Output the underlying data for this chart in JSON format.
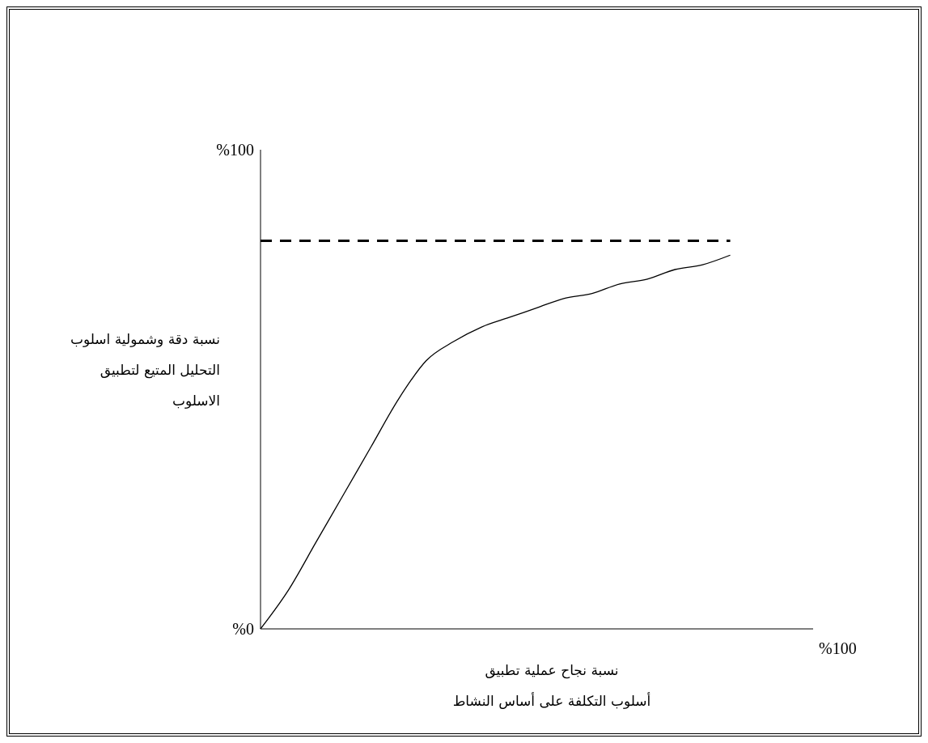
{
  "chart_data": {
    "type": "line",
    "xlabel": "نسبة نجاح عملية تطبيق\nأسلوب التكلفة على أساس النشاط",
    "ylabel": "نسبة دقة وشمولية اسلوب\nالتحليل المتيع لتطبيق\nالاسلوب",
    "categories": [
      null,
      null,
      null,
      null,
      null,
      null,
      null,
      null,
      null,
      null,
      null,
      null,
      null,
      null,
      null,
      null,
      null,
      null,
      null,
      null,
      null
    ],
    "series": [
      {
        "color": "#000000",
        "line_style": "dashed",
        "values": [
          81,
          81,
          81,
          81,
          81,
          81,
          81,
          81,
          81,
          81,
          81,
          81,
          81,
          81,
          81,
          81,
          81,
          81,
          null,
          null,
          null
        ]
      },
      {
        "color": "#000000",
        "line_style": "solid",
        "values": [
          0,
          8,
          18,
          28,
          38,
          48,
          56,
          60,
          63,
          65,
          67,
          69,
          70,
          72,
          73,
          75,
          76,
          78,
          null,
          null,
          null
        ]
      }
    ],
    "ylim": [
      0,
      100
    ],
    "yticks": [
      {
        "value": 0,
        "label": "%0"
      },
      {
        "value": 100,
        "label": "%100"
      }
    ],
    "annotations": [
      "%100"
    ],
    "grid": false,
    "legend": false,
    "marker": "none"
  }
}
